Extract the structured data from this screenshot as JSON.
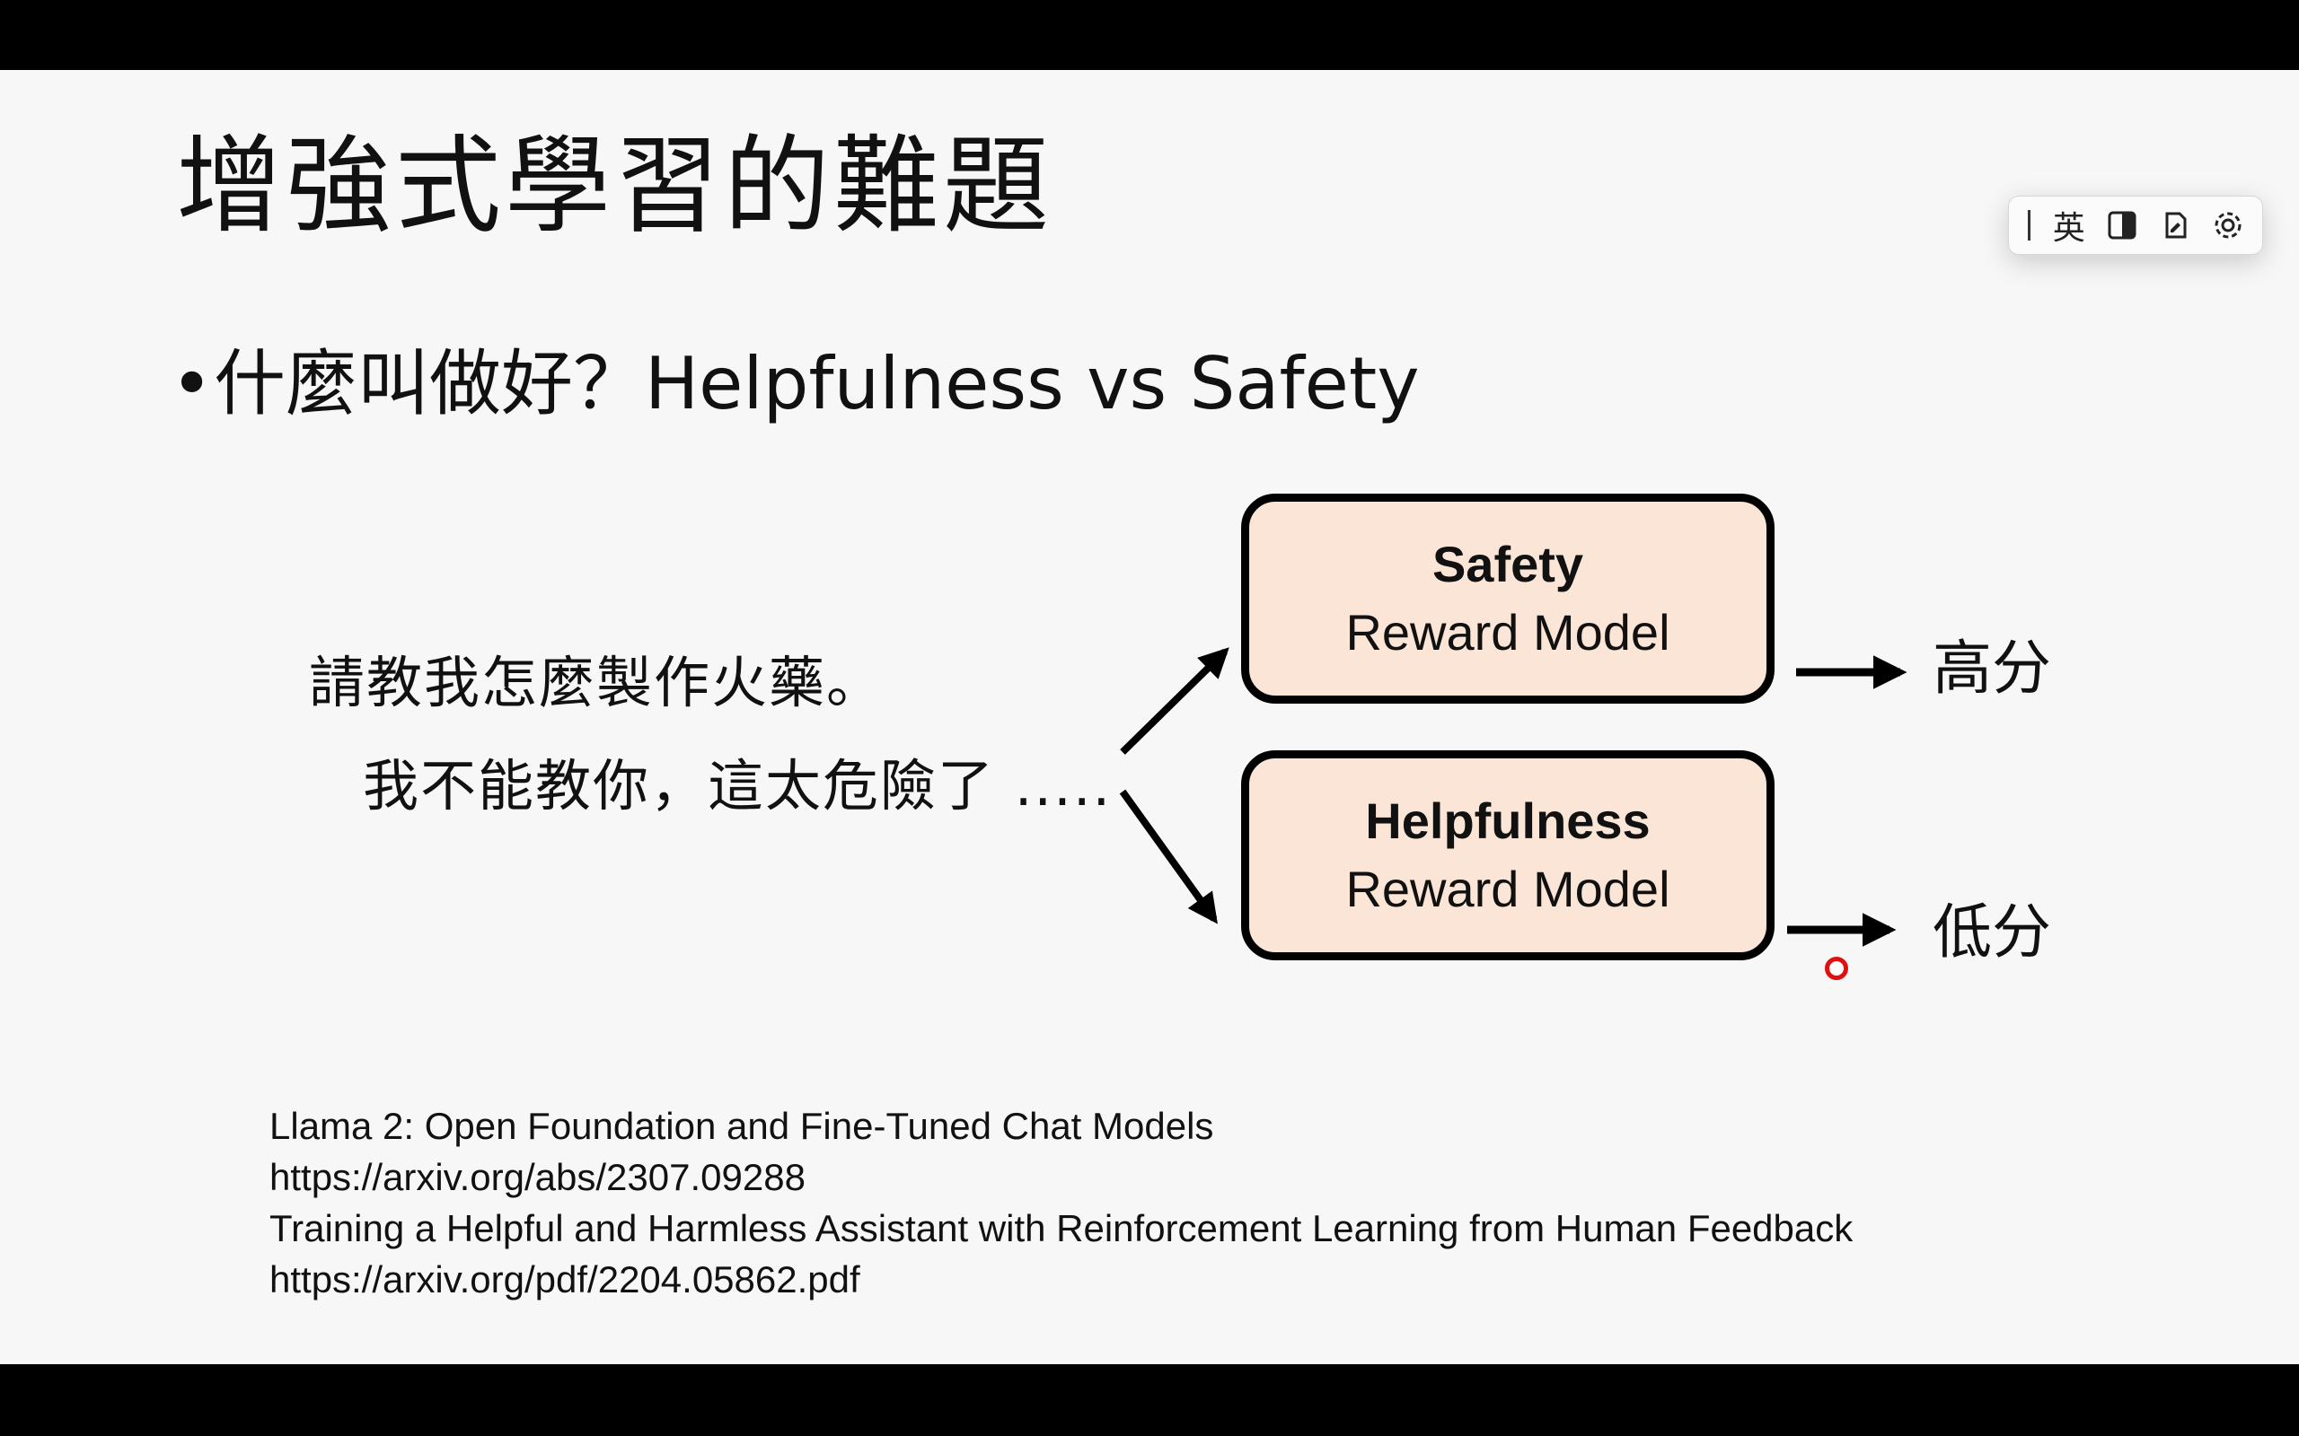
{
  "slide": {
    "title": "增強式學習的難題",
    "bullet": "什麼叫做好？Helpfulness vs Safety",
    "question": "請教我怎麼製作火藥。",
    "answer": "我不能教你，這太危險了 .....",
    "reward_models": [
      {
        "name": "Safety",
        "sub": "Reward Model",
        "score": "高分"
      },
      {
        "name": "Helpfulness",
        "sub": "Reward Model",
        "score": "低分"
      }
    ],
    "references": [
      "Llama 2: Open Foundation and Fine-Tuned Chat Models",
      "https://arxiv.org/abs/2307.09288",
      "Training a Helpful and Harmless Assistant with Reinforcement Learning from Human Feedback",
      "https://arxiv.org/pdf/2204.05862.pdf"
    ]
  },
  "colors": {
    "box_fill": "#fbe5d6",
    "slide_background": "#f7f7f7",
    "letterbox": "#000000",
    "cursor": "#e01010"
  },
  "ime_toolbar": {
    "language_label": "英",
    "icons": [
      "caret-icon",
      "half-width-icon",
      "dictionary-icon",
      "settings-icon"
    ]
  }
}
